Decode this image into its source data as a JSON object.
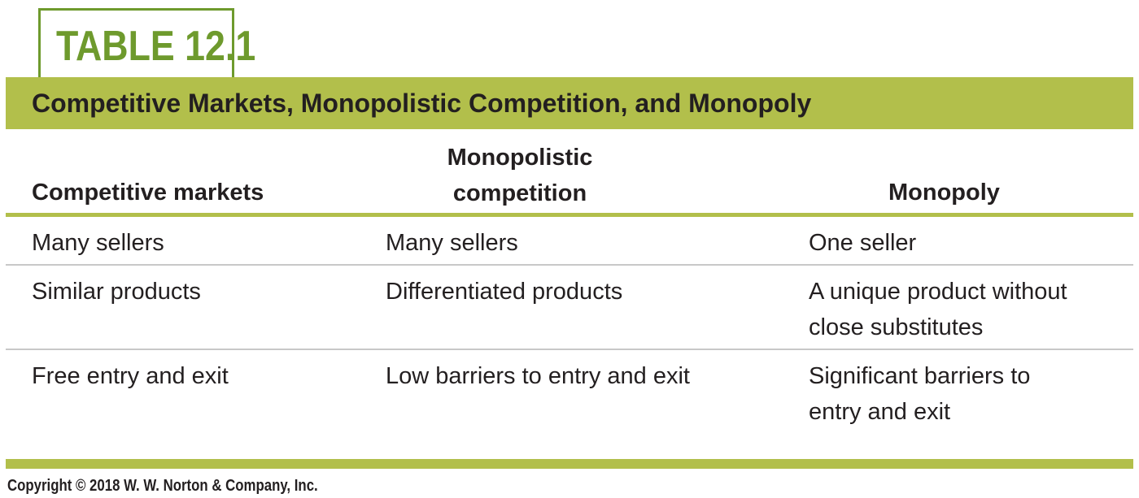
{
  "table_tag": "TABLE 12.1",
  "title": "Competitive Markets, Monopolistic Competition, and Monopoly",
  "columns": {
    "competitive": "Competitive markets",
    "monopolistic": [
      "Monopolistic",
      "competition"
    ],
    "monopoly": "Monopoly"
  },
  "rows": [
    {
      "competitive": "Many sellers",
      "monopolistic": "Many sellers",
      "monopoly": [
        "One seller"
      ]
    },
    {
      "competitive": "Similar products",
      "monopolistic": "Differentiated products",
      "monopoly": [
        "A unique product without",
        "close substitutes"
      ]
    },
    {
      "competitive": "Free entry and exit",
      "monopolistic": "Low barriers to entry and exit",
      "monopoly": [
        "Significant barriers to",
        "entry and exit"
      ]
    }
  ],
  "copyright": "Copyright © 2018 W. W. Norton & Company, Inc.",
  "colors": {
    "accent_green": "#6e9a2d",
    "band_green": "#b2bf4b",
    "text": "#231f20",
    "row_rule": "#c8c8c8"
  }
}
